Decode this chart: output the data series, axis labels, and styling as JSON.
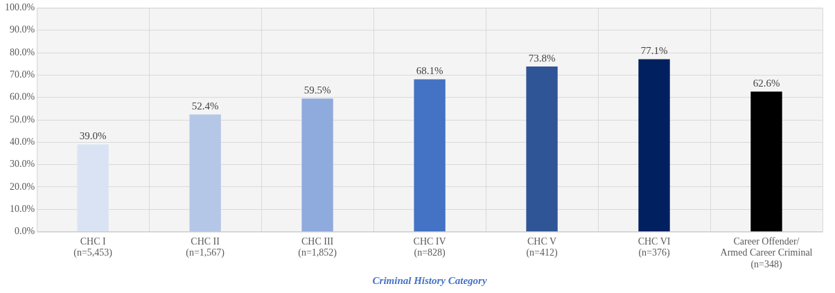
{
  "chart_data": {
    "type": "bar",
    "xlabel": "Criminal History Category",
    "categories": [
      "CHC I\n(n=5,453)",
      "CHC II\n(n=1,567)",
      "CHC III\n(n=1,852)",
      "CHC IV\n(n=828)",
      "CHC V\n(n=412)",
      "CHC VI\n(n=376)",
      "Career Offender/\nArmed Career Criminal\n(n=348)"
    ],
    "values": [
      39.0,
      52.4,
      59.5,
      68.1,
      73.8,
      77.1,
      62.6
    ],
    "colors": [
      "#dae3f3",
      "#b4c7e7",
      "#8faadc",
      "#4472c4",
      "#2f5597",
      "#002060",
      "#000000"
    ],
    "value_labels": [
      "39.0%",
      "52.4%",
      "59.5%",
      "68.1%",
      "73.8%",
      "77.1%",
      "62.6%"
    ],
    "ylim": [
      0,
      100
    ],
    "yticks": [
      {
        "value": 0,
        "label": "0.0%"
      },
      {
        "value": 10,
        "label": "10.0%"
      },
      {
        "value": 20,
        "label": "20.0%"
      },
      {
        "value": 30,
        "label": "30.0%"
      },
      {
        "value": 40,
        "label": "40.0%"
      },
      {
        "value": 50,
        "label": "50.0%"
      },
      {
        "value": 60,
        "label": "60.0%"
      },
      {
        "value": 70,
        "label": "70.0%"
      },
      {
        "value": 80,
        "label": "80.0%"
      },
      {
        "value": 90,
        "label": "90.0%"
      },
      {
        "value": 100,
        "label": "100.0%"
      }
    ],
    "grid": true,
    "legend": false
  }
}
